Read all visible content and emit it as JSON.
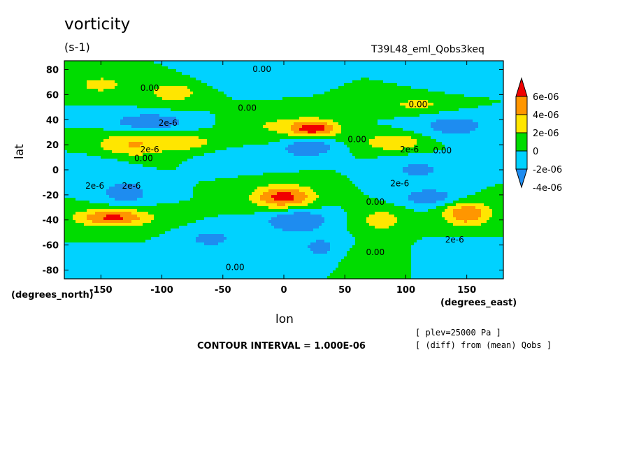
{
  "chart_data": {
    "type": "heatmap",
    "title": "vorticity",
    "units": "(s-1)",
    "run_label": "T39L48_eml_Qobs3keq",
    "xlabel": "lon",
    "ylabel": "lat",
    "x_units": "(degrees_east)",
    "y_units": "(degrees_north)",
    "xlim": [
      -180,
      180
    ],
    "ylim": [
      -87,
      87
    ],
    "x_ticks": [
      -150,
      -100,
      -50,
      0,
      50,
      100,
      150
    ],
    "x_tick_labels": [
      "-150",
      "-100",
      "-50",
      "0",
      "50",
      "100",
      "150"
    ],
    "y_ticks": [
      80,
      60,
      40,
      20,
      0,
      -20,
      -40,
      -60,
      -80
    ],
    "y_tick_labels": [
      "80",
      "60",
      "40",
      "20",
      "0",
      "-20",
      "-40",
      "-60",
      "-80"
    ],
    "colorbar": {
      "levels": [
        -6e-06,
        -4e-06,
        -2e-06,
        0,
        2e-06,
        4e-06,
        6e-06
      ],
      "labels": [
        "-4e-06",
        "-2e-06",
        "0",
        "2e-06",
        "4e-06",
        "6e-06"
      ],
      "colors": [
        "#1e8cf0",
        "#00d2ff",
        "#00dc00",
        "#ffe600",
        "#ff9600",
        "#f00000"
      ]
    },
    "contour_interval": "CONTOUR INTERVAL = 1.000E-06",
    "notes": [
      "[ plev=25000 Pa ]",
      "[ (diff) from (mean) Qobs ]"
    ],
    "features": [
      {
        "lon": 25,
        "lat": 33,
        "value": 7e-06
      },
      {
        "lon": 0,
        "lat": -22,
        "value": 7e-06
      },
      {
        "lon": -140,
        "lat": -38,
        "value": 6.5e-06
      },
      {
        "lon": 150,
        "lat": -35,
        "value": 6e-06
      },
      {
        "lon": 90,
        "lat": 22,
        "value": 4e-06
      },
      {
        "lon": -125,
        "lat": 20,
        "value": 4e-06
      },
      {
        "lon": -150,
        "lat": 68,
        "value": 3e-06
      },
      {
        "lon": -90,
        "lat": 62,
        "value": 3e-06
      },
      {
        "lon": 110,
        "lat": 52,
        "value": 2.5e-06
      },
      {
        "lon": 80,
        "lat": -40,
        "value": 3e-06
      },
      {
        "lon": -80,
        "lat": 22,
        "value": 3e-06
      },
      {
        "lon": -10,
        "lat": 35,
        "value": 2e-06
      },
      {
        "lon": 20,
        "lat": 18,
        "value": -4.5e-06
      },
      {
        "lon": 10,
        "lat": -40,
        "value": -4.5e-06
      },
      {
        "lon": -110,
        "lat": 38,
        "value": -4e-06
      },
      {
        "lon": -130,
        "lat": -18,
        "value": -3.5e-06
      },
      {
        "lon": 120,
        "lat": -22,
        "value": -3.5e-06
      },
      {
        "lon": 140,
        "lat": 35,
        "value": -3e-06
      },
      {
        "lon": -60,
        "lat": -55,
        "value": -3e-06
      },
      {
        "lon": 110,
        "lat": 0,
        "value": -2.5e-06
      },
      {
        "lon": -30,
        "lat": 8,
        "value": -2e-06
      },
      {
        "lon": 30,
        "lat": -62,
        "value": -2.5e-06
      },
      {
        "lon": 150,
        "lat": 70,
        "value": -2e-06
      },
      {
        "lon": -40,
        "lat": 75,
        "value": -2e-06
      },
      {
        "lon": -150,
        "lat": -75,
        "value": -1.5e-06
      },
      {
        "lon": 150,
        "lat": -70,
        "value": -2e-06
      },
      {
        "lon": -160,
        "lat": 5,
        "value": -1.5e-06
      },
      {
        "lon": 70,
        "lat": -70,
        "value": 1.5e-06
      }
    ],
    "contour_labels": [
      {
        "text": "0.00",
        "lon": -18,
        "lat": 78
      },
      {
        "text": "0.00",
        "lon": -110,
        "lat": 63
      },
      {
        "text": "0.00",
        "lon": -30,
        "lat": 47
      },
      {
        "text": "0.00",
        "lon": 110,
        "lat": 50
      },
      {
        "text": "0.00",
        "lon": 60,
        "lat": 22
      },
      {
        "text": "0.00",
        "lon": -115,
        "lat": 7
      },
      {
        "text": "0.00",
        "lon": 130,
        "lat": 13
      },
      {
        "text": "0.00",
        "lon": 75,
        "lat": -28
      },
      {
        "text": "0.00",
        "lon": 75,
        "lat": -68
      },
      {
        "text": "0.00",
        "lon": -40,
        "lat": -80
      },
      {
        "text": "2e-6",
        "lon": -95,
        "lat": 35
      },
      {
        "text": "2e-6",
        "lon": -110,
        "lat": 14
      },
      {
        "text": "2e-6",
        "lon": 103,
        "lat": 14
      },
      {
        "text": "2e-6",
        "lon": 95,
        "lat": -13
      },
      {
        "text": "2e-6",
        "lon": -155,
        "lat": -15
      },
      {
        "text": "2e-6",
        "lon": -125,
        "lat": -15
      },
      {
        "text": "2e-6",
        "lon": 140,
        "lat": -58
      }
    ]
  }
}
